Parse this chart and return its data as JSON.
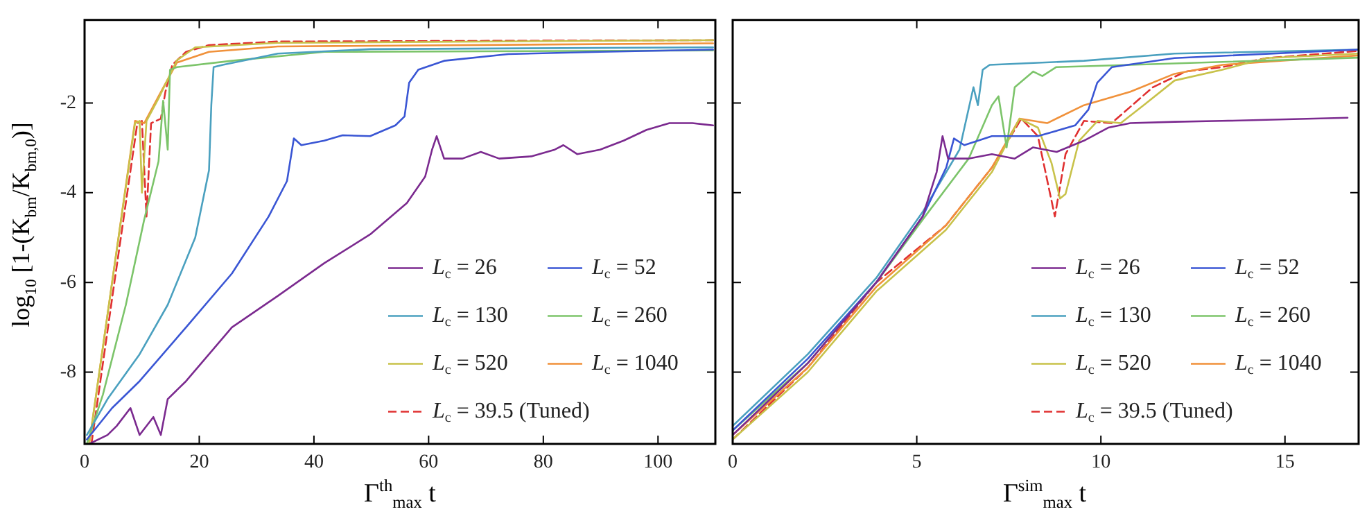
{
  "chart_data": [
    {
      "type": "line",
      "xlabel": "Γ$^{th}$$_{max}$ t",
      "ylabel": "log$_{10}$ [1-(K$_{bm}$/K$_{bm,0}$)]",
      "xlim": [
        0,
        110
      ],
      "xticks": [
        0,
        20,
        40,
        60,
        80,
        100
      ],
      "ylim": [
        -9.6,
        -0.15
      ],
      "yticks": [
        -8,
        -6,
        -4,
        -2
      ],
      "grid": false,
      "legend": "bottom right",
      "marker": "none",
      "series": [
        {
          "name": "L$_{c}$ = 26",
          "color": "#7b2a8f",
          "x": [
            0.8,
            4,
            5.6,
            8,
            9.6,
            12,
            13.3,
            14.5,
            17.7,
            25.7,
            33.7,
            41.8,
            49.8,
            56.2,
            59.4,
            60.6,
            61.4,
            62.7,
            65.9,
            69.1,
            72.3,
            77.9,
            82,
            83.5,
            85.9,
            89.9,
            94,
            98,
            102,
            106,
            109.6
          ],
          "values": [
            -9.6,
            -9.4,
            -9.2,
            -8.8,
            -9.4,
            -9.0,
            -9.4,
            -8.6,
            -8.2,
            -7.0,
            -6.3,
            -5.57,
            -4.93,
            -4.23,
            -3.64,
            -3.04,
            -2.74,
            -3.24,
            -3.24,
            -3.09,
            -3.24,
            -3.19,
            -3.04,
            -2.94,
            -3.14,
            -3.04,
            -2.84,
            -2.6,
            -2.45,
            -2.45,
            -2.5
          ]
        },
        {
          "name": "L$_{c}$ = 52",
          "color": "#3a56d4",
          "x": [
            0.4,
            4.8,
            9.6,
            17.7,
            25.7,
            32.1,
            35.3,
            36.5,
            37.8,
            41.8,
            45,
            49.8,
            54.2,
            55.8,
            56.6,
            58.2,
            62.7,
            73.9,
            89.9,
            109.6
          ],
          "values": [
            -9.5,
            -8.8,
            -8.2,
            -7.0,
            -5.8,
            -4.53,
            -3.74,
            -2.79,
            -2.94,
            -2.84,
            -2.72,
            -2.74,
            -2.5,
            -2.3,
            -1.55,
            -1.26,
            -1.06,
            -0.91,
            -0.86,
            -0.81
          ]
        },
        {
          "name": "L$_{c}$ = 130",
          "color": "#4aa0bf",
          "x": [
            0.4,
            4,
            9.6,
            14.5,
            19.3,
            21.7,
            22.1,
            22.5,
            24.1,
            33.7,
            49.8,
            109.6
          ],
          "values": [
            -9.4,
            -8.6,
            -7.6,
            -6.5,
            -5.0,
            -3.5,
            -2.05,
            -1.2,
            -1.15,
            -0.9,
            -0.8,
            -0.76
          ]
        },
        {
          "name": "L$_{c}$ = 260",
          "color": "#7cc46a",
          "x": [
            0.4,
            3.2,
            7.2,
            10.4,
            12.9,
            13.7,
            14.5,
            14.9,
            16.1,
            25.7,
            41.8,
            109.6
          ],
          "values": [
            -9.6,
            -8.5,
            -6.5,
            -4.6,
            -3.3,
            -1.95,
            -3.04,
            -1.26,
            -1.2,
            -1.06,
            -0.86,
            -0.83
          ]
        },
        {
          "name": "L$_{c}$ = 520",
          "color": "#c8c24a",
          "x": [
            0.8,
            4.8,
            8.8,
            9.6,
            10,
            10.8,
            12.9,
            16.1,
            19.3,
            33.7,
            109.6
          ],
          "values": [
            -9.6,
            -6.0,
            -2.45,
            -2.4,
            -4.0,
            -2.4,
            -1.9,
            -1.05,
            -0.76,
            -0.66,
            -0.6
          ]
        },
        {
          "name": "L$_{c}$ = 1040",
          "color": "#f0913a",
          "x": [
            0.8,
            4.8,
            8.8,
            10.4,
            12.9,
            16.1,
            21.7,
            33.7,
            109.6
          ],
          "values": [
            -9.6,
            -6.0,
            -2.4,
            -2.45,
            -1.85,
            -1.1,
            -0.86,
            -0.74,
            -0.67
          ]
        },
        {
          "name": "L$_{c}$ = 39.5 (Tuned)",
          "color": "#e03030",
          "line_style": "dashed",
          "x": [
            1.2,
            5.2,
            9.2,
            10,
            10.8,
            11.6,
            13.3,
            14.1,
            15.3,
            17.7,
            21.7,
            33.7,
            109.6
          ],
          "values": [
            -9.6,
            -6.0,
            -2.45,
            -2.4,
            -4.53,
            -2.45,
            -2.35,
            -1.75,
            -1.15,
            -0.86,
            -0.71,
            -0.63,
            -0.6
          ]
        }
      ]
    },
    {
      "type": "line",
      "xlabel": "Γ$^{sim}$$_{max}$ t",
      "xlim": [
        0,
        17
      ],
      "xticks": [
        0,
        5,
        10,
        15
      ],
      "ylim": [
        -9.6,
        -0.15
      ],
      "yticks": [
        -8,
        -6,
        -4,
        -2
      ],
      "tick_labels": "x",
      "grid": false,
      "legend": "bottom right",
      "marker": "none",
      "series": [
        {
          "name": "L$_{c}$ = 26",
          "color": "#7b2a8f",
          "x": [
            0,
            2.04,
            3.9,
            5.16,
            5.54,
            5.7,
            5.85,
            6.4,
            7.04,
            7.66,
            8.16,
            8.8,
            9.54,
            10.2,
            10.8,
            12,
            13.3,
            16.7
          ],
          "values": [
            -9.4,
            -7.8,
            -6.0,
            -4.53,
            -3.54,
            -2.74,
            -3.24,
            -3.24,
            -3.14,
            -3.24,
            -2.99,
            -3.09,
            -2.84,
            -2.55,
            -2.45,
            -2.42,
            -2.4,
            -2.33
          ]
        },
        {
          "name": "L$_{c}$ = 52",
          "color": "#3a56d4",
          "x": [
            0,
            2.04,
            3.9,
            5.16,
            5.8,
            6.01,
            6.29,
            7.04,
            8.29,
            9.3,
            9.66,
            9.9,
            10.3,
            12,
            17
          ],
          "values": [
            -9.3,
            -7.7,
            -6.0,
            -4.53,
            -3.44,
            -2.79,
            -2.94,
            -2.74,
            -2.74,
            -2.5,
            -2.15,
            -1.55,
            -1.2,
            -1.0,
            -0.81
          ]
        },
        {
          "name": "L$_{c}$ = 130",
          "color": "#4aa0bf",
          "x": [
            0,
            2.04,
            3.9,
            5.16,
            6.16,
            6.54,
            6.66,
            6.79,
            6.98,
            9.54,
            12,
            17
          ],
          "values": [
            -9.2,
            -7.6,
            -5.9,
            -4.43,
            -3.04,
            -1.65,
            -2.05,
            -1.26,
            -1.15,
            -1.06,
            -0.9,
            -0.81
          ]
        },
        {
          "name": "L$_{c}$ = 260",
          "color": "#7cc46a",
          "x": [
            0,
            2.04,
            3.9,
            5.16,
            6.41,
            7.04,
            7.22,
            7.44,
            7.66,
            8.16,
            8.41,
            8.79,
            10.8,
            17
          ],
          "values": [
            -9.3,
            -7.8,
            -6.0,
            -4.6,
            -3.24,
            -2.05,
            -1.85,
            -2.99,
            -1.65,
            -1.3,
            -1.4,
            -1.2,
            -1.15,
            -0.99
          ]
        },
        {
          "name": "L$_{c}$ = 520",
          "color": "#c8c24a",
          "x": [
            0,
            2.04,
            3.9,
            5.79,
            7.04,
            7.79,
            8.29,
            8.66,
            8.89,
            9.04,
            9.41,
            9.91,
            10.54,
            11.16,
            12,
            13.3,
            14.5,
            17
          ],
          "values": [
            -9.5,
            -8.0,
            -6.2,
            -4.83,
            -3.54,
            -2.35,
            -2.55,
            -3.34,
            -4.13,
            -4.03,
            -2.84,
            -2.4,
            -2.45,
            -2.05,
            -1.5,
            -1.26,
            -1.0,
            -0.9
          ]
        },
        {
          "name": "L$_{c}$ = 1040",
          "color": "#f0913a",
          "x": [
            0,
            2.04,
            3.9,
            5.79,
            7.04,
            7.79,
            8.54,
            9.54,
            10.8,
            12,
            13.3,
            17
          ],
          "values": [
            -9.4,
            -7.9,
            -6.1,
            -4.73,
            -3.44,
            -2.35,
            -2.45,
            -2.05,
            -1.75,
            -1.35,
            -1.15,
            -0.94
          ]
        },
        {
          "name": "L$_{c}$ = 39.5 (Tuned)",
          "color": "#e03030",
          "line_style": "dashed",
          "x": [
            0,
            2.04,
            3.9,
            5.79,
            7.04,
            7.84,
            8.29,
            8.75,
            9.04,
            9.54,
            10.29,
            11.41,
            12.3,
            13.3,
            14.5,
            17
          ],
          "values": [
            -9.5,
            -7.9,
            -6.0,
            -4.73,
            -3.44,
            -2.35,
            -2.74,
            -4.53,
            -3.14,
            -2.4,
            -2.45,
            -1.65,
            -1.3,
            -1.2,
            -1.0,
            -0.84
          ]
        }
      ]
    }
  ]
}
